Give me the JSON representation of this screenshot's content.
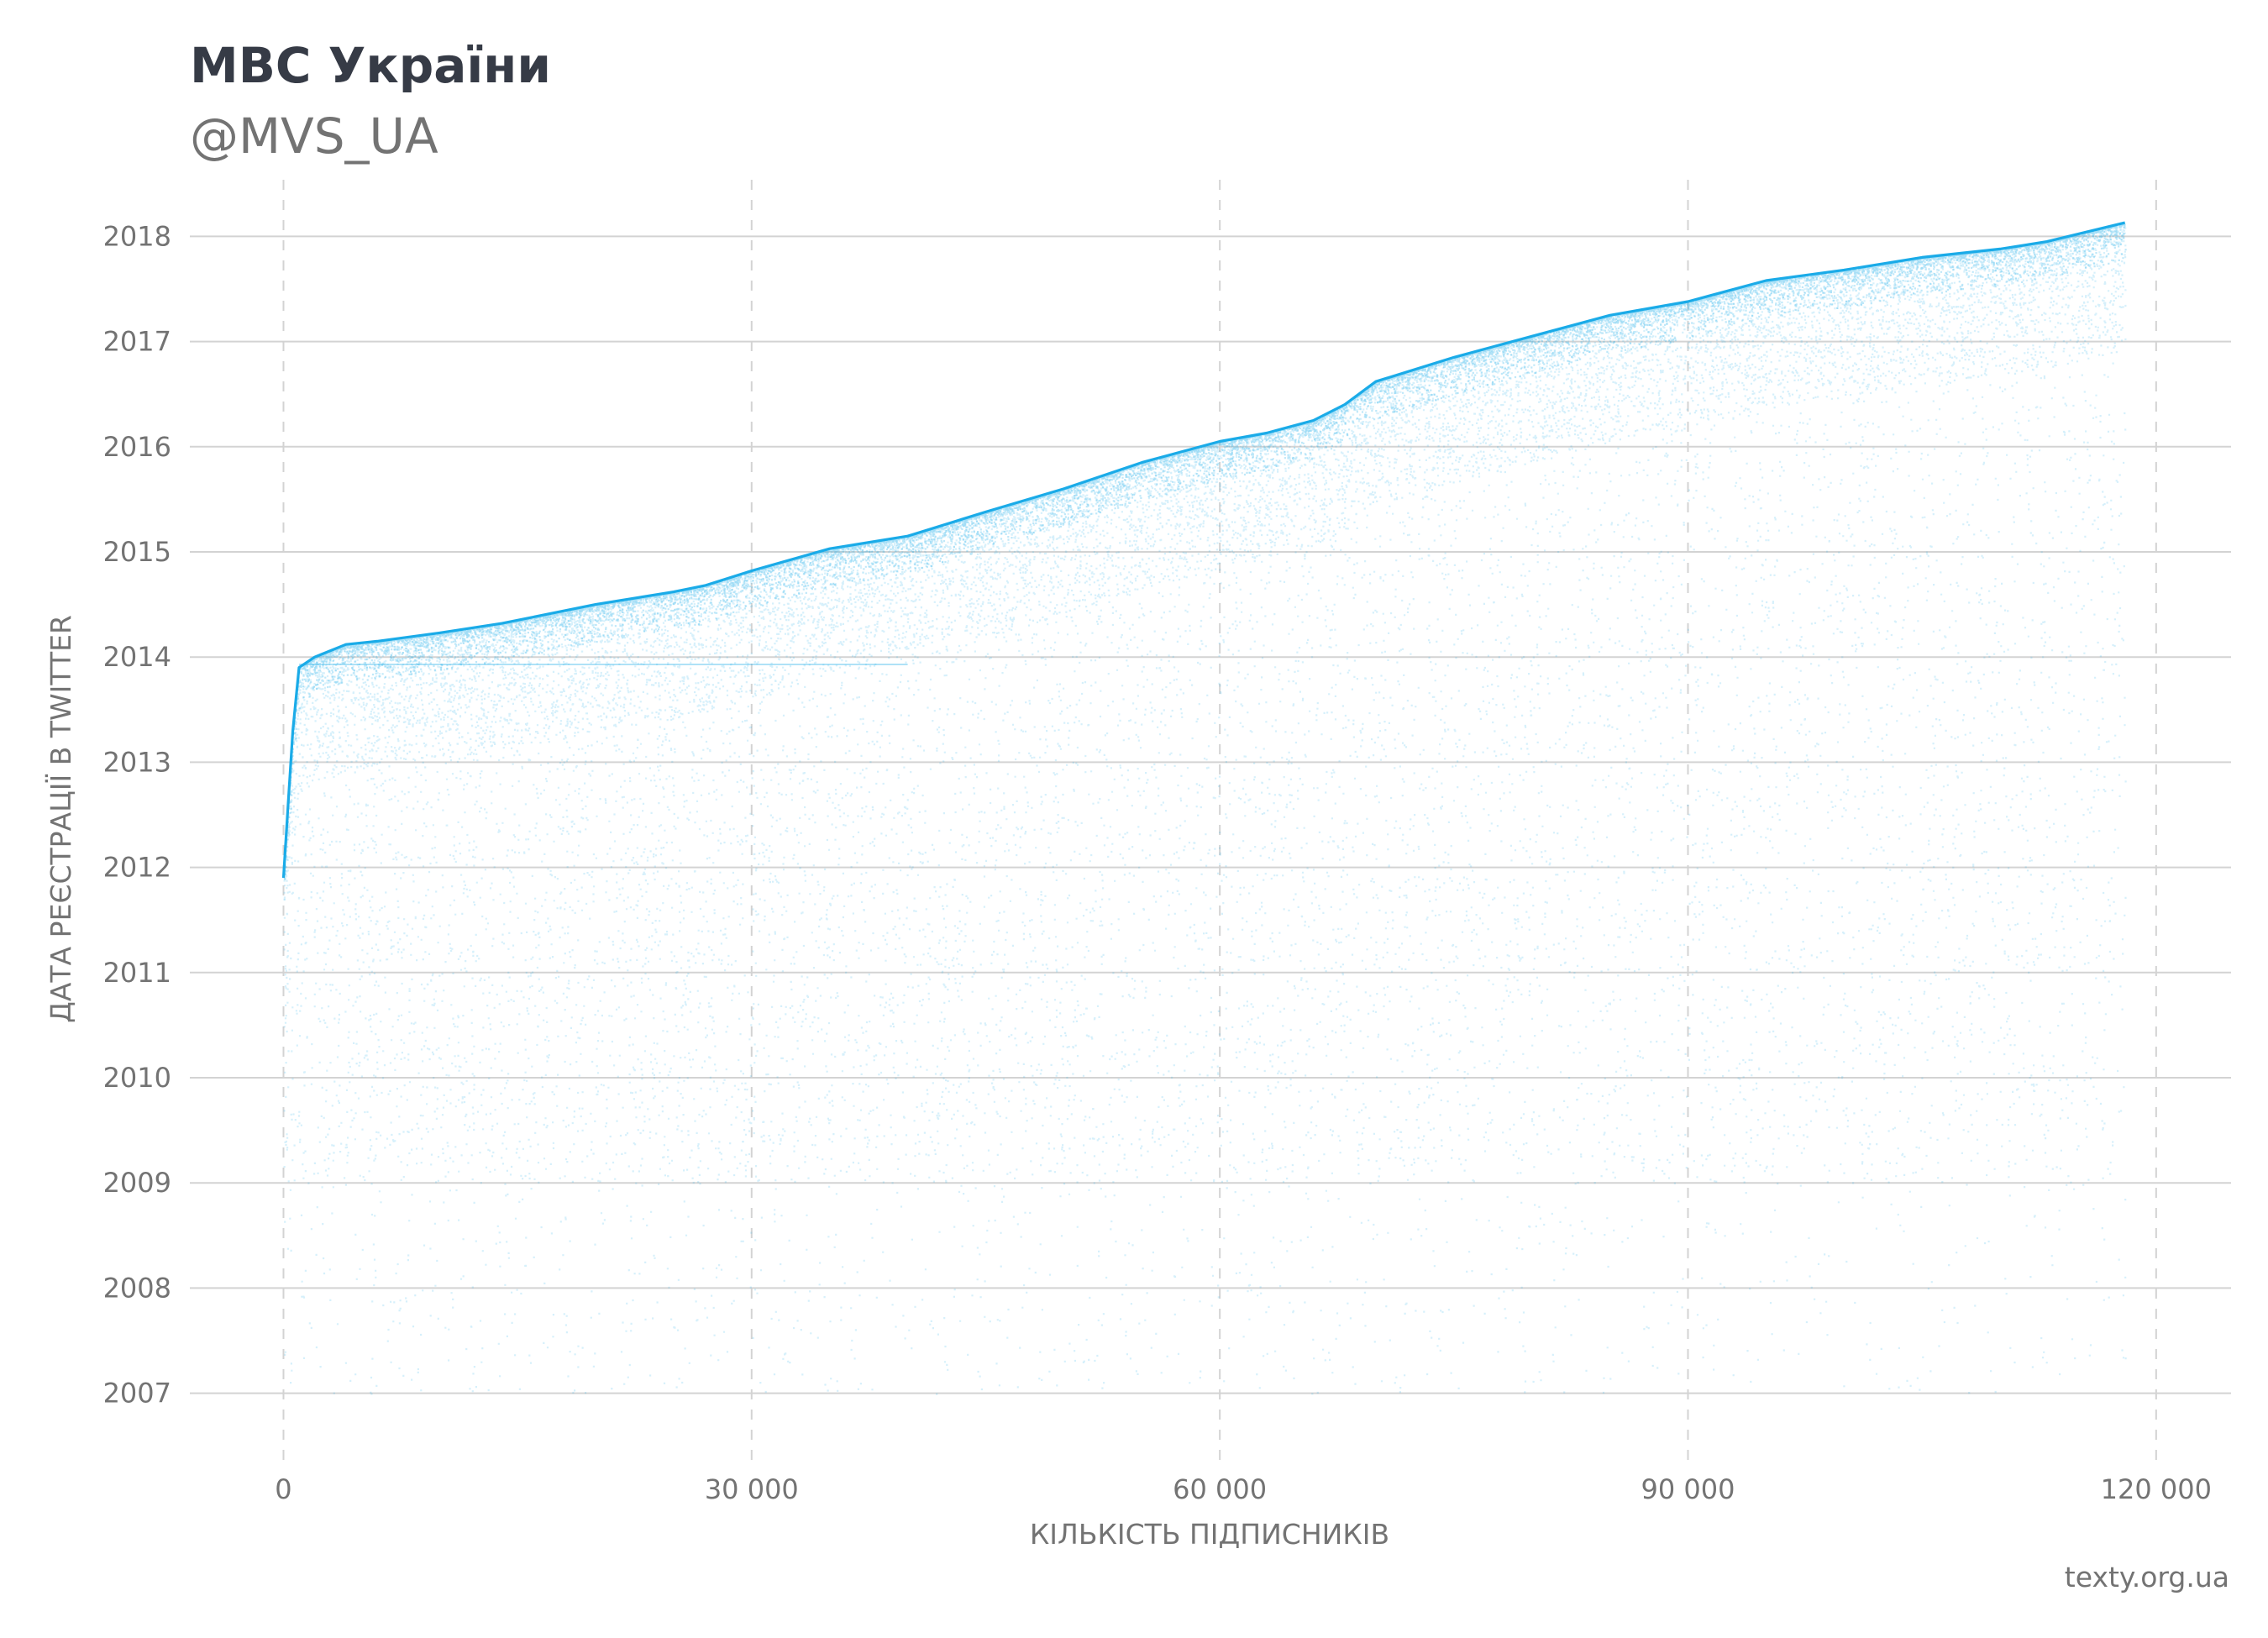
{
  "header": {
    "title": "МВС України",
    "subtitle": "@MVS_UA"
  },
  "footer": {
    "source": "texty.org.ua"
  },
  "colors": {
    "accent": "#1aabe8",
    "grid": "#d3d3d3",
    "text": "#737373",
    "title": "#363b46"
  },
  "chart_data": {
    "type": "scatter",
    "xlabel": "КІЛЬКІСТЬ ПІДПИСНИКІВ",
    "ylabel": "ДАТА РЕЄСТРАЦІЇ В TWITTER",
    "xlim": [
      -6000,
      124800
    ],
    "ylim": [
      2006.35,
      2018.65
    ],
    "x_ticks": [
      {
        "value": 0,
        "label": "0"
      },
      {
        "value": 30000,
        "label": "30 000"
      },
      {
        "value": 60000,
        "label": "60 000"
      },
      {
        "value": 90000,
        "label": "90 000"
      },
      {
        "value": 120000,
        "label": "120 000"
      }
    ],
    "y_ticks": [
      {
        "value": 2007,
        "label": "2007"
      },
      {
        "value": 2008,
        "label": "2008"
      },
      {
        "value": 2009,
        "label": "2009"
      },
      {
        "value": 2010,
        "label": "2010"
      },
      {
        "value": 2011,
        "label": "2011"
      },
      {
        "value": 2012,
        "label": "2012"
      },
      {
        "value": 2013,
        "label": "2013"
      },
      {
        "value": 2014,
        "label": "2014"
      },
      {
        "value": 2015,
        "label": "2015"
      },
      {
        "value": 2016,
        "label": "2016"
      },
      {
        "value": 2017,
        "label": "2017"
      },
      {
        "value": 2018,
        "label": "2018"
      }
    ],
    "grid": {
      "x": "dashed",
      "y": "solid"
    },
    "frontier": {
      "x": [
        0,
        300,
        600,
        1000,
        2000,
        4000,
        6000,
        10000,
        14000,
        20000,
        25000,
        27000,
        30000,
        35000,
        40000,
        45000,
        50000,
        55000,
        60000,
        63000,
        66000,
        68000,
        70000,
        75000,
        80000,
        85000,
        90000,
        95000,
        100000,
        105000,
        110000,
        113000,
        118000
      ],
      "y": [
        2011.9,
        2012.6,
        2013.3,
        2013.9,
        2014.0,
        2014.12,
        2014.15,
        2014.23,
        2014.32,
        2014.5,
        2014.62,
        2014.68,
        2014.82,
        2015.03,
        2015.15,
        2015.38,
        2015.6,
        2015.85,
        2016.05,
        2016.13,
        2016.25,
        2016.4,
        2016.62,
        2016.85,
        2017.05,
        2017.25,
        2017.38,
        2017.58,
        2017.68,
        2017.8,
        2017.88,
        2017.95,
        2018.13
      ]
    }
  }
}
